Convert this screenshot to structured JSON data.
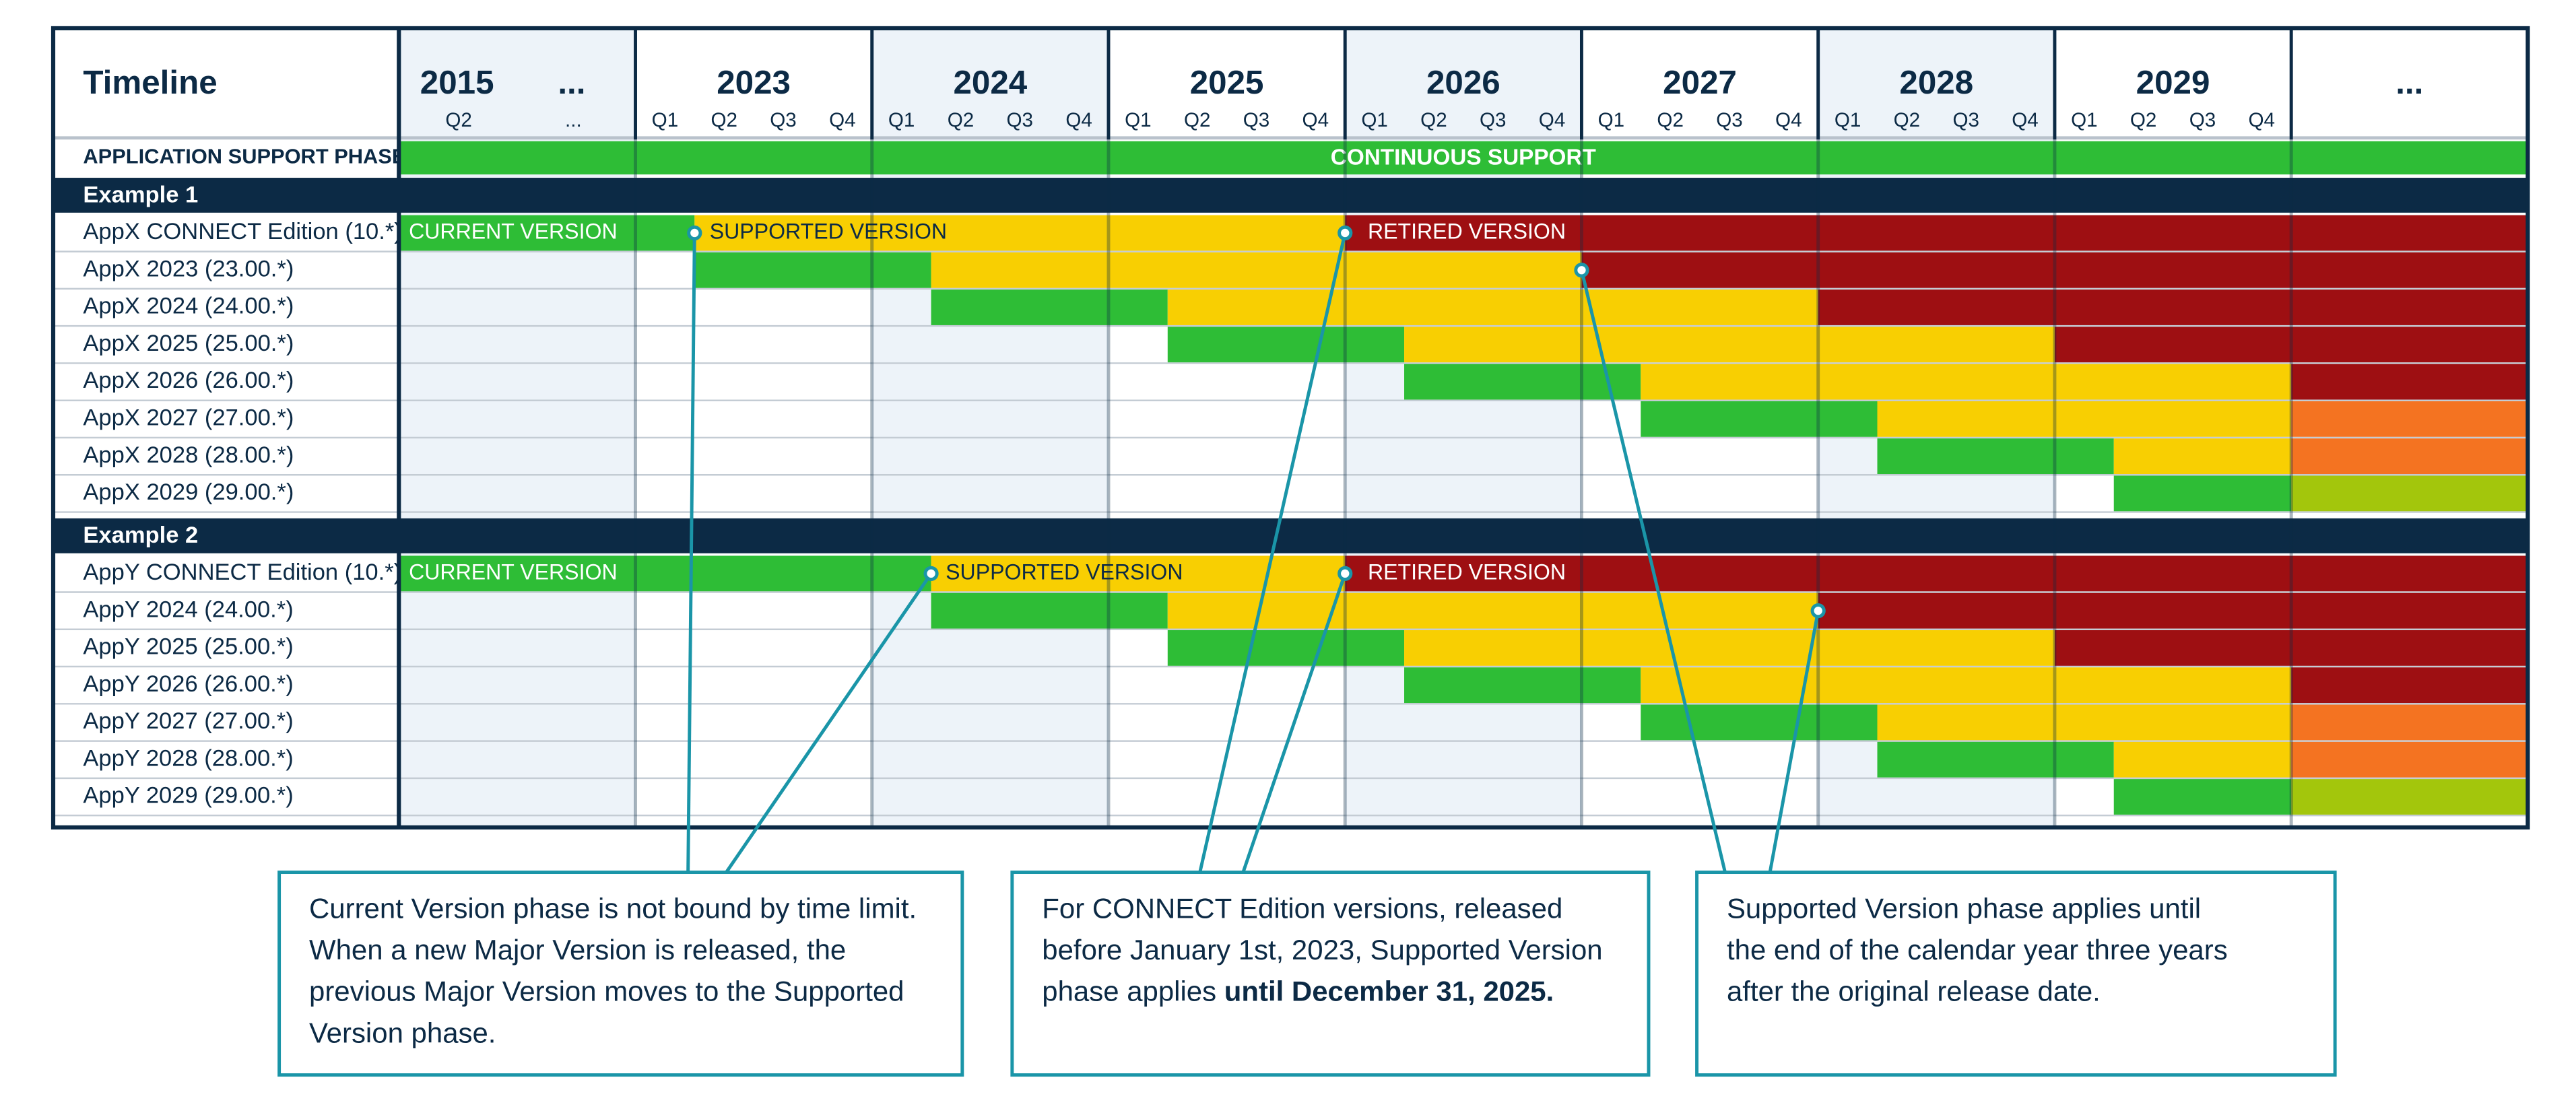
{
  "header": {
    "title": "Timeline",
    "columns": [
      {
        "years": [
          "2015",
          "..."
        ],
        "quarters": [
          "Q2",
          "..."
        ]
      },
      {
        "years": [
          "2023"
        ],
        "quarters": [
          "Q1",
          "Q2",
          "Q3",
          "Q4"
        ]
      },
      {
        "years": [
          "2024"
        ],
        "quarters": [
          "Q1",
          "Q2",
          "Q3",
          "Q4"
        ]
      },
      {
        "years": [
          "2025"
        ],
        "quarters": [
          "Q1",
          "Q2",
          "Q3",
          "Q4"
        ]
      },
      {
        "years": [
          "2026"
        ],
        "quarters": [
          "Q1",
          "Q2",
          "Q3",
          "Q4"
        ]
      },
      {
        "years": [
          "2027"
        ],
        "quarters": [
          "Q1",
          "Q2",
          "Q3",
          "Q4"
        ]
      },
      {
        "years": [
          "2028"
        ],
        "quarters": [
          "Q1",
          "Q2",
          "Q3",
          "Q4"
        ]
      },
      {
        "years": [
          "2029"
        ],
        "quarters": [
          "Q1",
          "Q2",
          "Q3",
          "Q4"
        ]
      },
      {
        "years": [
          "..."
        ],
        "quarters": []
      }
    ]
  },
  "support_phase": {
    "label": "APPLICATION SUPPORT PHASE",
    "text": "CONTINUOUS SUPPORT"
  },
  "phase_labels": [
    "CURRENT VERSION",
    "SUPPORTED VERSION",
    "RETIRED VERSION"
  ],
  "groups": [
    {
      "title": "Example 1",
      "rows": [
        "AppX CONNECT Edition (10.*)",
        "AppX 2023 (23.00.*)",
        "AppX 2024 (24.00.*)",
        "AppX 2025 (25.00.*)",
        "AppX 2026 (26.00.*)",
        "AppX 2027 (27.00.*)",
        "AppX 2028 (28.00.*)",
        "AppX 2029 (29.00.*)"
      ]
    },
    {
      "title": "Example 2",
      "rows": [
        "AppY CONNECT Edition (10.*)",
        "AppY 2024 (24.00.*)",
        "AppY 2025 (25.00.*)",
        "AppY 2026 (26.00.*)",
        "AppY 2027 (27.00.*)",
        "AppY 2028 (28.00.*)",
        "AppY 2029 (29.00.*)"
      ]
    }
  ],
  "callouts": [
    {
      "lines": [
        "Current Version phase is not bound by time limit.",
        "When a new Major Version is released, the",
        "previous Major Version moves to the Supported",
        "Version phase."
      ]
    },
    {
      "lines": [
        "For CONNECT Edition versions, released",
        "before January 1st, 2023, Supported Version",
        "phase applies"
      ],
      "bold": "until December 31, 2025."
    },
    {
      "lines": [
        "Supported Version phase applies until",
        "the end of the calendar year three years",
        "after the original release date."
      ]
    }
  ]
}
